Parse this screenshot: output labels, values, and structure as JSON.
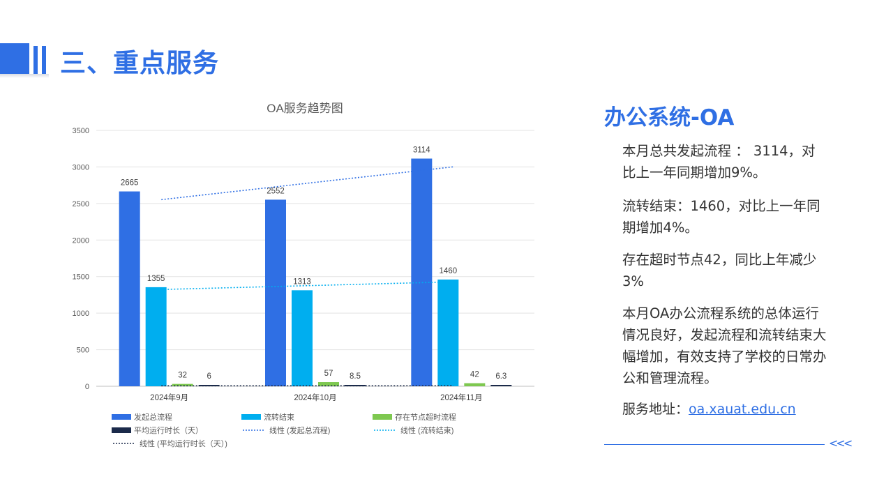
{
  "header": {
    "title": "三、重点服务"
  },
  "side": {
    "title": "办公系统-OA",
    "paragraphs": [
      "本月总共发起流程 ： 3114，对比上一年同期增加9%。",
      "流转结束：1460，对比上一年同期增加4%。",
      "存在超时节点42，同比上年减少3%",
      "本月OA办公流程系统的总体运行情况良好，发起流程和流转结束大幅增加，有效支持了学校的日常办公和管理流程。"
    ],
    "service_label": "服务地址：",
    "service_url": "oa.xauat.edu.cn",
    "chevrons": "<<<"
  },
  "chart_data": {
    "type": "bar",
    "title": "OA服务趋势图",
    "categories": [
      "2024年9月",
      "2024年10月",
      "2024年11月"
    ],
    "ylim": [
      0,
      3500
    ],
    "yticks": [
      0,
      500,
      1000,
      1500,
      2000,
      2500,
      3000,
      3500
    ],
    "grid": true,
    "legend_position": "bottom",
    "series": [
      {
        "name": "发起总流程",
        "values": [
          2665,
          2552,
          3114
        ],
        "labels": [
          "2665",
          "2552",
          "3114"
        ],
        "color": "#2f6fe4"
      },
      {
        "name": "流转结束",
        "values": [
          1355,
          1313,
          1460
        ],
        "labels": [
          "1355",
          "1313",
          "1460"
        ],
        "color": "#00aeef"
      },
      {
        "name": "存在节点超时流程",
        "values": [
          32,
          57,
          42
        ],
        "labels": [
          "32",
          "57",
          "42"
        ],
        "color": "#7ec850"
      },
      {
        "name": "平均运行时长（天）",
        "values": [
          6,
          8.5,
          6.3
        ],
        "labels": [
          "6",
          "8.5",
          "6.3"
        ],
        "color": "#1b2a4a"
      }
    ],
    "trendlines": [
      {
        "name": "线性 (发起总流程)",
        "series": 0,
        "color": "#2f6fe4"
      },
      {
        "name": "线性 (流转结束)",
        "series": 1,
        "color": "#00aeef"
      },
      {
        "name": "线性 (平均运行时长（天）)",
        "series": 3,
        "color": "#1b2a4a"
      }
    ]
  }
}
